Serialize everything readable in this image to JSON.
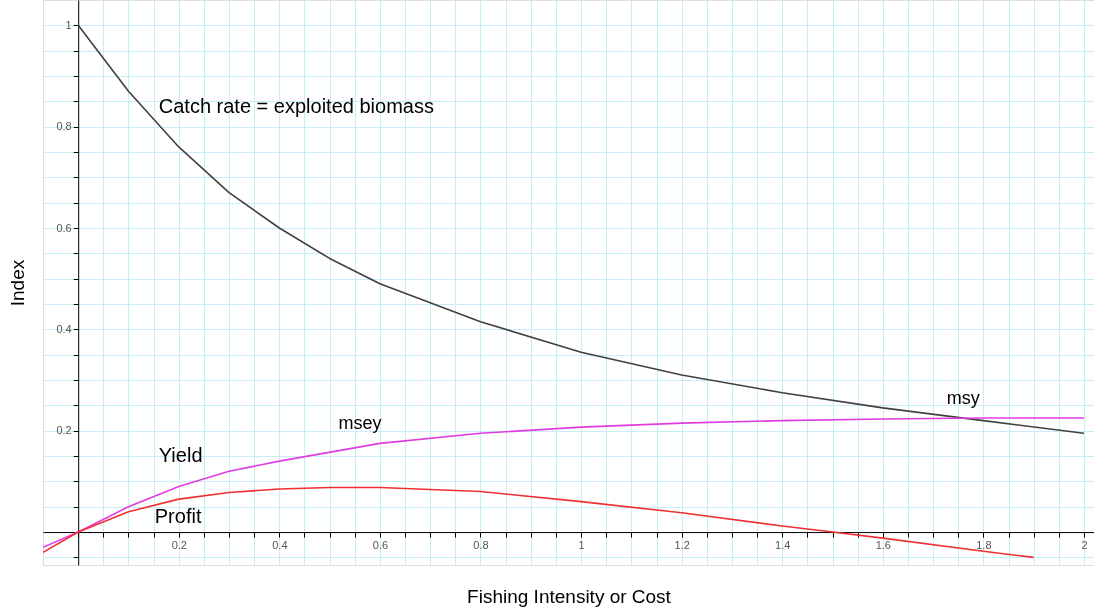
{
  "chart_data": {
    "type": "line",
    "xlabel": "Fishing Intensity or Cost",
    "ylabel": "Index",
    "xlim": [
      -0.07,
      2.02
    ],
    "ylim": [
      -0.065,
      1.05
    ],
    "xticks": [
      {
        "value": 0,
        "label": null
      },
      {
        "value": 0.05,
        "label": null
      },
      {
        "value": 0.1,
        "label": null
      },
      {
        "value": 0.15,
        "label": null
      },
      0.2,
      {
        "value": 0.25,
        "label": null
      },
      {
        "value": 0.3,
        "label": null
      },
      {
        "value": 0.35,
        "label": null
      },
      0.4,
      {
        "value": 0.45,
        "label": null
      },
      {
        "value": 0.5,
        "label": null
      },
      {
        "value": 0.55,
        "label": null
      },
      0.6,
      {
        "value": 0.65,
        "label": null
      },
      {
        "value": 0.7,
        "label": null
      },
      {
        "value": 0.75,
        "label": null
      },
      0.8,
      {
        "value": 0.85,
        "label": null
      },
      {
        "value": 0.9,
        "label": null
      },
      {
        "value": 0.95,
        "label": null
      },
      1,
      {
        "value": 1.05,
        "label": null
      },
      {
        "value": 1.1,
        "label": null
      },
      {
        "value": 1.15,
        "label": null
      },
      1.2,
      {
        "value": 1.25,
        "label": null
      },
      {
        "value": 1.3,
        "label": null
      },
      {
        "value": 1.35,
        "label": null
      },
      1.4,
      {
        "value": 1.45,
        "label": null
      },
      {
        "value": 1.5,
        "label": null
      },
      {
        "value": 1.55,
        "label": null
      },
      1.6,
      {
        "value": 1.65,
        "label": null
      },
      {
        "value": 1.7,
        "label": null
      },
      {
        "value": 1.75,
        "label": null
      },
      1.8,
      {
        "value": 1.85,
        "label": null
      },
      {
        "value": 1.9,
        "label": null
      },
      {
        "value": 1.95,
        "label": null
      },
      2
    ],
    "yticks": [
      {
        "value": -0.05,
        "label": null
      },
      {
        "value": 0,
        "label": null
      },
      {
        "value": 0.05,
        "label": null
      },
      {
        "value": 0.1,
        "label": null
      },
      {
        "value": 0.15,
        "label": null
      },
      0.2,
      {
        "value": 0.25,
        "label": null
      },
      {
        "value": 0.3,
        "label": null
      },
      {
        "value": 0.35,
        "label": null
      },
      0.4,
      {
        "value": 0.45,
        "label": null
      },
      {
        "value": 0.5,
        "label": null
      },
      {
        "value": 0.55,
        "label": null
      },
      0.6,
      {
        "value": 0.65,
        "label": null
      },
      {
        "value": 0.7,
        "label": null
      },
      {
        "value": 0.75,
        "label": null
      },
      0.8,
      {
        "value": 0.85,
        "label": null
      },
      {
        "value": 0.9,
        "label": null
      },
      {
        "value": 0.95,
        "label": null
      },
      1
    ],
    "grid": true,
    "marker": "none",
    "line_style": "solid",
    "series": [
      {
        "name": "Catch rate = exploited biomass",
        "color": "#404040",
        "x": [
          0,
          0.1,
          0.2,
          0.3,
          0.4,
          0.5,
          0.6,
          0.8,
          1.0,
          1.2,
          1.4,
          1.6,
          1.8,
          2.0
        ],
        "values": [
          1,
          0.87,
          0.76,
          0.67,
          0.6,
          0.54,
          0.49,
          0.415,
          0.355,
          0.31,
          0.275,
          0.245,
          0.22,
          0.195
        ]
      },
      {
        "name": "Yield",
        "color": "#e03ce0",
        "x": [
          -0.07,
          0,
          0.1,
          0.2,
          0.3,
          0.4,
          0.6,
          0.8,
          1.0,
          1.2,
          1.4,
          1.6,
          1.8,
          2.0
        ],
        "values": [
          -0.03,
          0,
          0.05,
          0.09,
          0.12,
          0.14,
          0.175,
          0.195,
          0.207,
          0.215,
          0.22,
          0.223,
          0.225,
          0.225
        ]
      },
      {
        "name": "Profit",
        "color": "#f03030",
        "x": [
          -0.07,
          0,
          0.1,
          0.2,
          0.3,
          0.4,
          0.5,
          0.6,
          0.8,
          1.0,
          1.2,
          1.4,
          1.5,
          1.6,
          1.8,
          1.9
        ],
        "values": [
          -0.04,
          0,
          0.04,
          0.065,
          0.078,
          0.085,
          0.088,
          0.088,
          0.08,
          0.06,
          0.038,
          0.012,
          0,
          -0.012,
          -0.038,
          -0.05
        ]
      }
    ],
    "annotations": [
      {
        "text": "msey",
        "x": 0.6,
        "y": 0.175
      },
      {
        "text": "msy",
        "x": 1.8,
        "y": 0.225
      }
    ]
  }
}
